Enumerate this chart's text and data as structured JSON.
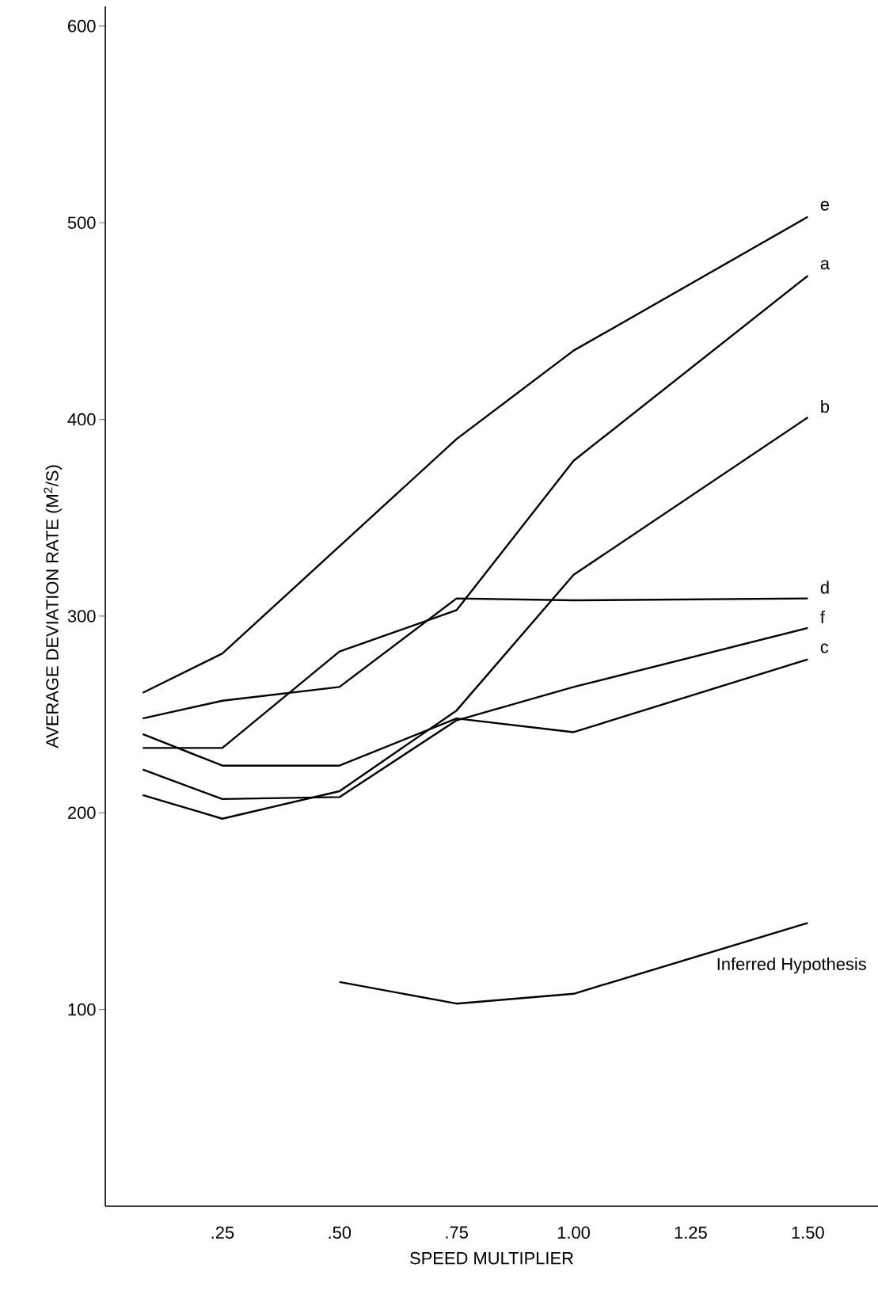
{
  "chart_data": {
    "type": "line",
    "xlabel": "SPEED MULTIPLIER",
    "ylabel": "AVERAGE DEVIATION RATE (M$^{2}$/S)",
    "xlim": [
      0,
      1.65
    ],
    "ylim": [
      0,
      610
    ],
    "xticks": [
      {
        "value": 0.25,
        "label": ".25"
      },
      {
        "value": 0.5,
        "label": ".50"
      },
      {
        "value": 0.75,
        "label": ".75"
      },
      {
        "value": 1.0,
        "label": "1.00"
      },
      {
        "value": 1.25,
        "label": "1.25"
      },
      {
        "value": 1.5,
        "label": "1.50"
      }
    ],
    "yticks": [
      100,
      200,
      300,
      400,
      500,
      600
    ],
    "grid": false,
    "marker": "none",
    "line_style": "solid",
    "series": [
      {
        "name": "e",
        "color": "#000000",
        "x": [
          0.08,
          0.25,
          0.75,
          1.0,
          1.5
        ],
        "values": [
          261,
          281,
          390,
          435,
          503
        ]
      },
      {
        "name": "a",
        "color": "#000000",
        "x": [
          0.08,
          0.25,
          0.5,
          0.75,
          1.0,
          1.5
        ],
        "values": [
          233,
          233,
          282,
          303,
          379,
          473
        ]
      },
      {
        "name": "b",
        "color": "#000000",
        "x": [
          0.08,
          0.25,
          0.5,
          0.75,
          1.0,
          1.5
        ],
        "values": [
          209,
          197,
          211,
          252,
          321,
          401
        ]
      },
      {
        "name": "d",
        "color": "#000000",
        "x": [
          0.08,
          0.25,
          0.5,
          0.75,
          1.0,
          1.5
        ],
        "values": [
          248,
          257,
          264,
          309,
          308,
          309
        ]
      },
      {
        "name": "f",
        "color": "#000000",
        "x": [
          0.08,
          0.25,
          0.5,
          0.75,
          1.0,
          1.5
        ],
        "values": [
          222,
          207,
          208,
          247,
          264,
          294
        ]
      },
      {
        "name": "c",
        "color": "#000000",
        "x": [
          0.08,
          0.25,
          0.5,
          0.75,
          1.0,
          1.5
        ],
        "values": [
          240,
          224,
          224,
          248,
          241,
          278
        ]
      },
      {
        "name": "Inferred Hypothesis",
        "color": "#000000",
        "x": [
          0.5,
          0.75,
          1.0,
          1.5
        ],
        "values": [
          114,
          103,
          108,
          144
        ]
      }
    ]
  }
}
